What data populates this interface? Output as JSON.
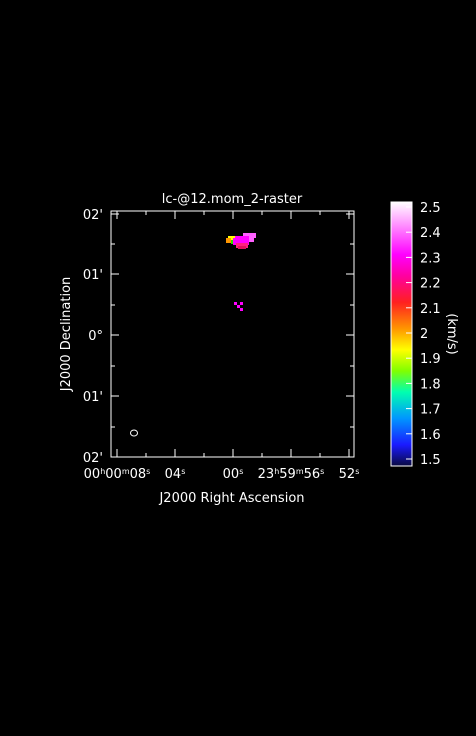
{
  "chart_data": {
    "type": "heatmap",
    "title": "lc-@12.mom_2-raster",
    "xlabel": "J2000 Right Ascension",
    "ylabel": "J2000 Declination",
    "x_ticks": [
      {
        "label": "00h00m08s",
        "parts": [
          [
            "00",
            ""
          ],
          [
            "h",
            "sup"
          ],
          [
            "00",
            ""
          ],
          [
            "m",
            "sup"
          ],
          [
            "08",
            ""
          ],
          [
            "s",
            "sup"
          ]
        ]
      },
      {
        "label": "04s",
        "parts": [
          [
            "04",
            ""
          ],
          [
            "s",
            "sup"
          ]
        ]
      },
      {
        "label": "00s",
        "parts": [
          [
            "00",
            ""
          ],
          [
            "s",
            "sup"
          ]
        ]
      },
      {
        "label": "23h59m56s",
        "parts": [
          [
            "23",
            ""
          ],
          [
            "h",
            "sup"
          ],
          [
            "59",
            ""
          ],
          [
            "m",
            "sup"
          ],
          [
            "56",
            ""
          ],
          [
            "s",
            "sup"
          ]
        ]
      },
      {
        "label": "52s",
        "parts": [
          [
            "52",
            ""
          ],
          [
            "s",
            "sup"
          ]
        ]
      }
    ],
    "y_ticks": [
      "02'",
      "01'",
      "0°",
      "01'",
      "02'"
    ],
    "colorbar": {
      "label": "(km/s)",
      "min": 1.5,
      "max": 2.5,
      "ticks": [
        "2.5",
        "2.4",
        "2.3",
        "2.2",
        "2.1",
        "2",
        "1.9",
        "1.8",
        "1.7",
        "1.6",
        "1.5"
      ],
      "gradient": [
        [
          "#0a0a40",
          0.0
        ],
        [
          "#1a1aff",
          0.08
        ],
        [
          "#0096ff",
          0.18
        ],
        [
          "#00ffb0",
          0.28
        ],
        [
          "#80ff00",
          0.36
        ],
        [
          "#ffff00",
          0.44
        ],
        [
          "#ff9600",
          0.52
        ],
        [
          "#ff2020",
          0.62
        ],
        [
          "#ff00a0",
          0.72
        ],
        [
          "#ff00ff",
          0.8
        ],
        [
          "#ff80ff",
          0.9
        ],
        [
          "#ffffff",
          1.0
        ]
      ]
    },
    "emission_colors": [
      "#ff00ff",
      "#ff60ff",
      "#ff2080",
      "#e01060",
      "#ffff00",
      "#30e000",
      "#ff9600"
    ],
    "grid": false
  }
}
